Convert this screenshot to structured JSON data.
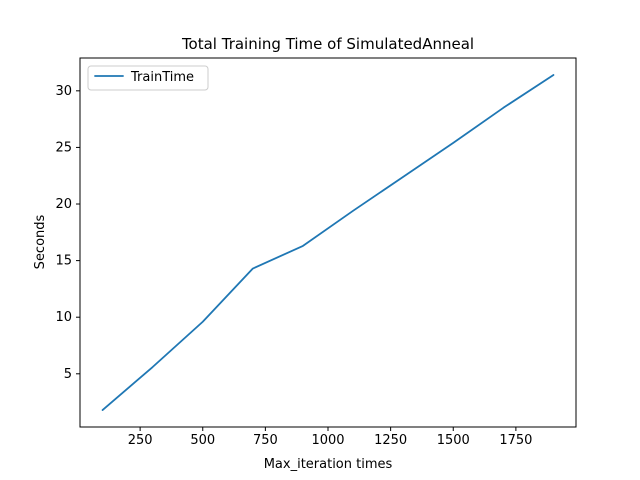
{
  "chart_data": {
    "type": "line",
    "title": "Total Training Time of SimulatedAnneal",
    "xlabel": "Max_iteration times",
    "ylabel": "Seconds",
    "xlim": [
      10,
      1990
    ],
    "ylim": [
      0.3,
      32.9
    ],
    "xticks": [
      250,
      500,
      750,
      1000,
      1250,
      1500,
      1750
    ],
    "yticks": [
      5,
      10,
      15,
      20,
      25,
      30
    ],
    "grid": false,
    "legend_position": "top-left",
    "series": [
      {
        "name": "TrainTime",
        "color": "#1f77b4",
        "x": [
          100,
          300,
          500,
          700,
          900,
          1100,
          1300,
          1500,
          1700,
          1900
        ],
        "y": [
          1.8,
          5.6,
          9.6,
          14.3,
          16.3,
          19.4,
          22.4,
          25.4,
          28.5,
          31.4
        ]
      }
    ]
  }
}
